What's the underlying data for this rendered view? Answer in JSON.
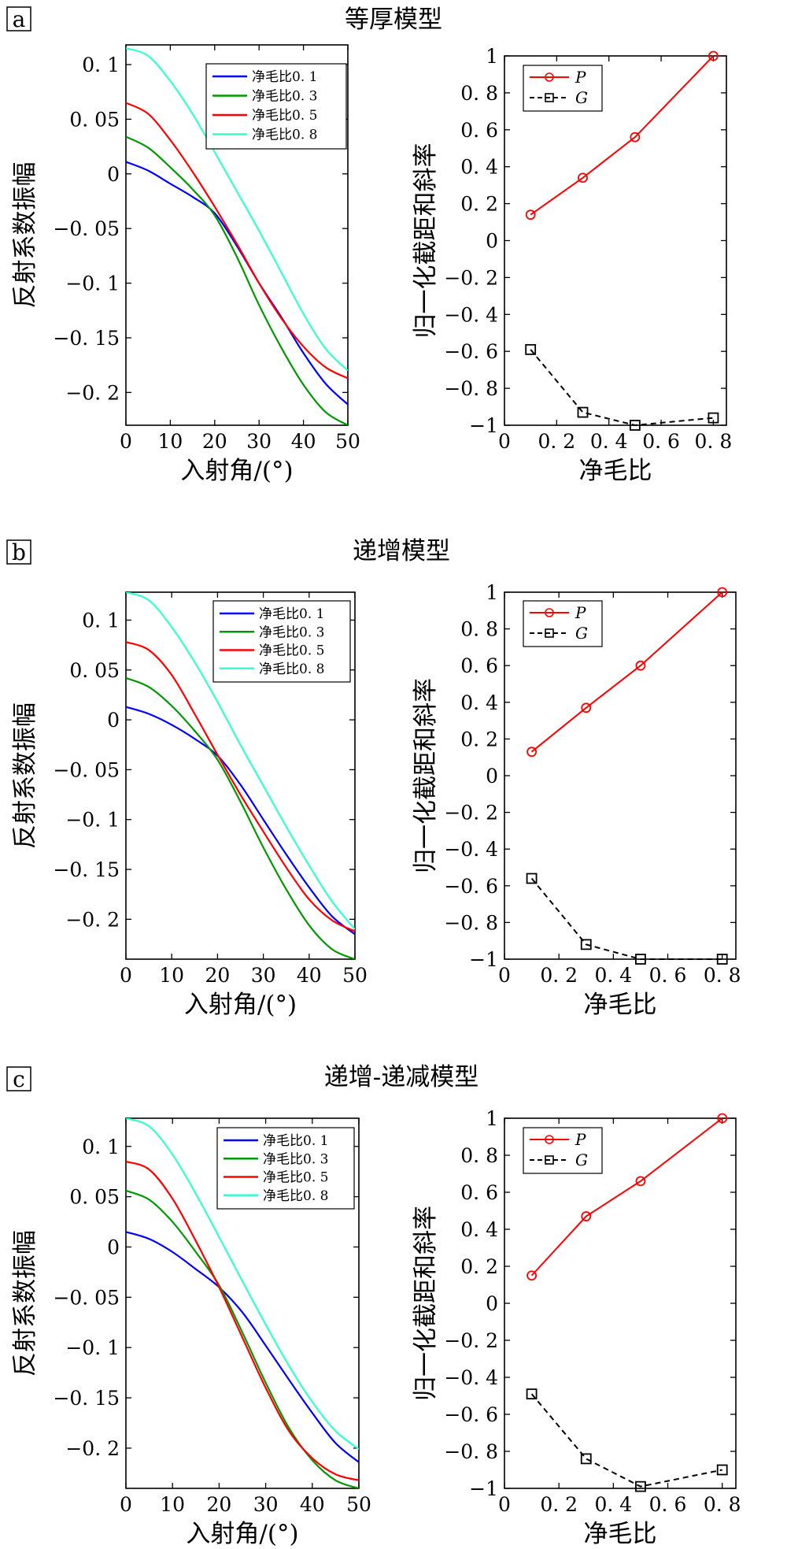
{
  "colors": {
    "series_0_1": "#0000ff",
    "series_0_3": "#009900",
    "series_0_5": "#ff0000",
    "series_0_8": "#33ffcc",
    "P": "#ff0000",
    "G": "#000000"
  },
  "panels": [
    {
      "label": "a",
      "title": "等厚模型"
    },
    {
      "label": "b",
      "title": "递增模型"
    },
    {
      "label": "c",
      "title": "递增-递减模型"
    }
  ],
  "chart_data": [
    {
      "type": "line",
      "xlabel": "入射角/(°)",
      "ylabel": "反射系数振幅",
      "xlim": [
        0,
        50
      ],
      "ylim": [
        -0.23,
        0.118
      ],
      "xticks": [
        0,
        10,
        20,
        30,
        40,
        50
      ],
      "xticklabels": [
        "0",
        "10",
        "20",
        "30",
        "40",
        "50"
      ],
      "yticks": [
        0.1,
        0.05,
        0,
        -0.05,
        -0.1,
        -0.15,
        -0.2
      ],
      "yticklabels": [
        "0. 1",
        "0. 05",
        "0",
        "−0. 05",
        "−0. 1",
        "−0. 15",
        "−0. 2"
      ],
      "legend_position": "top-right",
      "series": [
        {
          "name": "净毛比0. 1",
          "x": [
            0,
            5,
            10,
            15,
            20,
            25,
            30,
            35,
            40,
            45,
            50
          ],
          "values": [
            0.011,
            0.003,
            -0.009,
            -0.021,
            -0.036,
            -0.066,
            -0.1,
            -0.131,
            -0.164,
            -0.192,
            -0.211
          ]
        },
        {
          "name": "净毛比0. 3",
          "x": [
            0,
            5,
            10,
            15,
            20,
            25,
            30,
            35,
            40,
            45,
            50
          ],
          "values": [
            0.034,
            0.024,
            0.006,
            -0.014,
            -0.038,
            -0.076,
            -0.12,
            -0.159,
            -0.193,
            -0.218,
            -0.23
          ]
        },
        {
          "name": "净毛比0. 5",
          "x": [
            0,
            5,
            10,
            15,
            20,
            25,
            30,
            35,
            40,
            45,
            50
          ],
          "values": [
            0.065,
            0.055,
            0.031,
            0.002,
            -0.03,
            -0.064,
            -0.1,
            -0.132,
            -0.158,
            -0.177,
            -0.187
          ]
        },
        {
          "name": "净毛比0. 8",
          "x": [
            0,
            5,
            10,
            15,
            20,
            25,
            30,
            35,
            40,
            45,
            50
          ],
          "values": [
            0.115,
            0.108,
            0.085,
            0.055,
            0.02,
            -0.016,
            -0.052,
            -0.09,
            -0.128,
            -0.16,
            -0.18
          ]
        }
      ]
    },
    {
      "type": "line",
      "xlabel": "净毛比",
      "ylabel": "归一化截距和斜率",
      "xlim": [
        0,
        0.85
      ],
      "ylim": [
        -1,
        1
      ],
      "xticks": [
        0,
        0.2,
        0.4,
        0.6,
        0.8
      ],
      "xticklabels": [
        "0",
        "0. 2",
        "0. 4",
        "0. 6",
        "0. 8"
      ],
      "yticks": [
        1,
        0.8,
        0.6,
        0.4,
        0.2,
        0,
        -0.2,
        -0.4,
        -0.6,
        -0.8,
        -1
      ],
      "yticklabels": [
        "1",
        "0. 8",
        "0. 6",
        "0. 4",
        "0. 2",
        "0",
        "−0. 2",
        "−0. 4",
        "−0. 6",
        "−0. 8",
        "−1"
      ],
      "legend_position": "top-left",
      "series": [
        {
          "name": "P",
          "x": [
            0.1,
            0.3,
            0.5,
            0.8
          ],
          "values": [
            0.14,
            0.34,
            0.56,
            1.0
          ]
        },
        {
          "name": "G",
          "x": [
            0.1,
            0.3,
            0.5,
            0.8
          ],
          "values": [
            -0.59,
            -0.93,
            -1.0,
            -0.96
          ]
        }
      ]
    },
    {
      "type": "line",
      "xlabel": "入射角/(°)",
      "ylabel": "反射系数振幅",
      "xlim": [
        0,
        50
      ],
      "ylim": [
        -0.24,
        0.128
      ],
      "xticks": [
        0,
        10,
        20,
        30,
        40,
        50
      ],
      "xticklabels": [
        "0",
        "10",
        "20",
        "30",
        "40",
        "50"
      ],
      "yticks": [
        0.1,
        0.05,
        0,
        -0.05,
        -0.1,
        -0.15,
        -0.2
      ],
      "yticklabels": [
        "0. 1",
        "0. 05",
        "0",
        "−0. 05",
        "−0. 1",
        "−0. 15",
        "−0. 2"
      ],
      "legend_position": "top-right",
      "series": [
        {
          "name": "净毛比0. 1",
          "x": [
            0,
            5,
            10,
            15,
            20,
            25,
            30,
            35,
            40,
            45,
            50
          ],
          "values": [
            0.013,
            0.006,
            -0.005,
            -0.019,
            -0.036,
            -0.065,
            -0.1,
            -0.135,
            -0.168,
            -0.197,
            -0.215
          ]
        },
        {
          "name": "净毛比0. 3",
          "x": [
            0,
            5,
            10,
            15,
            20,
            25,
            30,
            35,
            40,
            45,
            50
          ],
          "values": [
            0.042,
            0.033,
            0.014,
            -0.011,
            -0.04,
            -0.082,
            -0.128,
            -0.17,
            -0.206,
            -0.23,
            -0.24
          ]
        },
        {
          "name": "净毛比0. 5",
          "x": [
            0,
            5,
            10,
            15,
            20,
            25,
            30,
            35,
            40,
            45,
            50
          ],
          "values": [
            0.078,
            0.07,
            0.045,
            0.006,
            -0.035,
            -0.075,
            -0.112,
            -0.148,
            -0.18,
            -0.201,
            -0.212
          ]
        },
        {
          "name": "净毛比0. 8",
          "x": [
            0,
            5,
            10,
            15,
            20,
            25,
            30,
            35,
            40,
            45,
            50
          ],
          "values": [
            0.128,
            0.12,
            0.093,
            0.058,
            0.018,
            -0.025,
            -0.066,
            -0.107,
            -0.146,
            -0.182,
            -0.21
          ]
        }
      ]
    },
    {
      "type": "line",
      "xlabel": "净毛比",
      "ylabel": "归一化截距和斜率",
      "xlim": [
        0,
        0.85
      ],
      "ylim": [
        -1,
        1
      ],
      "xticks": [
        0,
        0.2,
        0.4,
        0.6,
        0.8
      ],
      "xticklabels": [
        "0",
        "0. 2",
        "0. 4",
        "0. 6",
        "0. 8"
      ],
      "yticks": [
        1,
        0.8,
        0.6,
        0.4,
        0.2,
        0,
        -0.2,
        -0.4,
        -0.6,
        -0.8,
        -1
      ],
      "yticklabels": [
        "1",
        "0. 8",
        "0. 6",
        "0. 4",
        "0. 2",
        "0",
        "−0. 2",
        "−0. 4",
        "−0. 6",
        "−0. 8",
        "−1"
      ],
      "legend_position": "top-left",
      "series": [
        {
          "name": "P",
          "x": [
            0.1,
            0.3,
            0.5,
            0.8
          ],
          "values": [
            0.13,
            0.37,
            0.6,
            1.0
          ]
        },
        {
          "name": "G",
          "x": [
            0.1,
            0.3,
            0.5,
            0.8
          ],
          "values": [
            -0.56,
            -0.92,
            -1.0,
            -1.0
          ]
        }
      ]
    },
    {
      "type": "line",
      "xlabel": "入射角/(°)",
      "ylabel": "反射系数振幅",
      "xlim": [
        0,
        50
      ],
      "ylim": [
        -0.24,
        0.128
      ],
      "xticks": [
        0,
        10,
        20,
        30,
        40,
        50
      ],
      "xticklabels": [
        "0",
        "10",
        "20",
        "30",
        "40",
        "50"
      ],
      "yticks": [
        0.1,
        0.05,
        0,
        -0.05,
        -0.1,
        -0.15,
        -0.2
      ],
      "yticklabels": [
        "0. 1",
        "0. 05",
        "0",
        "−0. 05",
        "−0. 1",
        "−0. 15",
        "−0. 2"
      ],
      "legend_position": "top-right",
      "series": [
        {
          "name": "净毛比0. 1",
          "x": [
            0,
            5,
            10,
            15,
            20,
            25,
            30,
            35,
            40,
            45,
            50
          ],
          "values": [
            0.015,
            0.008,
            -0.005,
            -0.022,
            -0.04,
            -0.065,
            -0.098,
            -0.132,
            -0.165,
            -0.195,
            -0.214
          ]
        },
        {
          "name": "净毛比0. 3",
          "x": [
            0,
            5,
            10,
            15,
            20,
            25,
            30,
            35,
            40,
            45,
            50
          ],
          "values": [
            0.056,
            0.047,
            0.025,
            -0.005,
            -0.038,
            -0.085,
            -0.135,
            -0.18,
            -0.212,
            -0.232,
            -0.24
          ]
        },
        {
          "name": "净毛比0. 5",
          "x": [
            0,
            5,
            10,
            15,
            20,
            25,
            30,
            35,
            40,
            45,
            50
          ],
          "values": [
            0.085,
            0.077,
            0.048,
            0.006,
            -0.04,
            -0.09,
            -0.14,
            -0.183,
            -0.21,
            -0.226,
            -0.232
          ]
        },
        {
          "name": "净毛比0. 8",
          "x": [
            0,
            5,
            10,
            15,
            20,
            25,
            30,
            35,
            40,
            45,
            50
          ],
          "values": [
            0.128,
            0.12,
            0.092,
            0.053,
            0.01,
            -0.034,
            -0.077,
            -0.118,
            -0.154,
            -0.183,
            -0.201
          ]
        }
      ]
    },
    {
      "type": "line",
      "xlabel": "净毛比",
      "ylabel": "归一化截距和斜率",
      "xlim": [
        0,
        0.85
      ],
      "ylim": [
        -1,
        1
      ],
      "xticks": [
        0,
        0.2,
        0.4,
        0.6,
        0.8
      ],
      "xticklabels": [
        "0",
        "0. 2",
        "0. 4",
        "0. 6",
        "0. 8"
      ],
      "yticks": [
        1,
        0.8,
        0.6,
        0.4,
        0.2,
        0,
        -0.2,
        -0.4,
        -0.6,
        -0.8,
        -1
      ],
      "yticklabels": [
        "1",
        "0. 8",
        "0. 6",
        "0. 4",
        "0. 2",
        "0",
        "−0. 2",
        "−0. 4",
        "−0. 6",
        "−0. 8",
        "−1"
      ],
      "legend_position": "top-left",
      "series": [
        {
          "name": "P",
          "x": [
            0.1,
            0.3,
            0.5,
            0.8
          ],
          "values": [
            0.15,
            0.47,
            0.66,
            1.0
          ]
        },
        {
          "name": "G",
          "x": [
            0.1,
            0.3,
            0.5,
            0.8
          ],
          "values": [
            -0.49,
            -0.84,
            -0.99,
            -0.9
          ]
        }
      ]
    }
  ]
}
